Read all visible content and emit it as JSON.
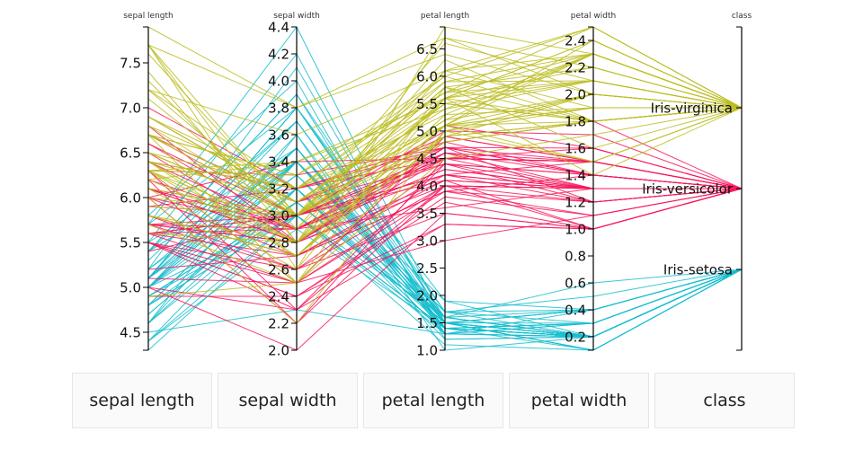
{
  "chart_data": {
    "type": "parallel-coordinates",
    "dimensions": [
      {
        "name": "sepal length",
        "domain": [
          4.3,
          7.9
        ],
        "ticks": [
          4.5,
          5.0,
          5.5,
          6.0,
          6.5,
          7.0,
          7.5
        ],
        "decimals": 1
      },
      {
        "name": "sepal width",
        "domain": [
          2.0,
          4.4
        ],
        "ticks": [
          2.0,
          2.2,
          2.4,
          2.6,
          2.8,
          3.0,
          3.2,
          3.4,
          3.6,
          3.8,
          4.0,
          4.2,
          4.4
        ],
        "decimals": 1
      },
      {
        "name": "petal length",
        "domain": [
          1.0,
          6.9
        ],
        "ticks": [
          1.0,
          1.5,
          2.0,
          2.5,
          3.0,
          3.5,
          4.0,
          4.5,
          5.0,
          5.5,
          6.0,
          6.5
        ],
        "decimals": 1
      },
      {
        "name": "petal width",
        "domain": [
          0.1,
          2.5
        ],
        "ticks": [
          0.2,
          0.4,
          0.6,
          0.8,
          1.0,
          1.2,
          1.4,
          1.6,
          1.8,
          2.0,
          2.2,
          2.4
        ],
        "decimals": 1
      },
      {
        "name": "class",
        "categories": [
          "Iris-setosa",
          "Iris-versicolor",
          "Iris-virginica"
        ]
      }
    ],
    "colors": {
      "Iris-setosa": "#17becf",
      "Iris-versicolor": "#f7175c",
      "Iris-virginica": "#bcbd22"
    },
    "rows": {
      "Iris-setosa": [
        [
          5.1,
          3.5,
          1.4,
          0.2
        ],
        [
          4.9,
          3.0,
          1.4,
          0.2
        ],
        [
          4.7,
          3.2,
          1.3,
          0.2
        ],
        [
          4.6,
          3.1,
          1.5,
          0.2
        ],
        [
          5.0,
          3.6,
          1.4,
          0.2
        ],
        [
          5.4,
          3.9,
          1.7,
          0.4
        ],
        [
          4.6,
          3.4,
          1.4,
          0.3
        ],
        [
          5.0,
          3.4,
          1.5,
          0.2
        ],
        [
          4.4,
          2.9,
          1.4,
          0.2
        ],
        [
          4.9,
          3.1,
          1.5,
          0.1
        ],
        [
          5.4,
          3.7,
          1.5,
          0.2
        ],
        [
          4.8,
          3.4,
          1.6,
          0.2
        ],
        [
          4.8,
          3.0,
          1.4,
          0.1
        ],
        [
          4.3,
          3.0,
          1.1,
          0.1
        ],
        [
          5.8,
          4.0,
          1.2,
          0.2
        ],
        [
          5.7,
          4.4,
          1.5,
          0.4
        ],
        [
          5.4,
          3.9,
          1.3,
          0.4
        ],
        [
          5.1,
          3.5,
          1.4,
          0.3
        ],
        [
          5.7,
          3.8,
          1.7,
          0.3
        ],
        [
          5.1,
          3.8,
          1.5,
          0.3
        ],
        [
          5.4,
          3.4,
          1.7,
          0.2
        ],
        [
          5.1,
          3.7,
          1.5,
          0.4
        ],
        [
          4.6,
          3.6,
          1.0,
          0.2
        ],
        [
          5.1,
          3.3,
          1.7,
          0.5
        ],
        [
          4.8,
          3.4,
          1.9,
          0.2
        ],
        [
          5.0,
          3.0,
          1.6,
          0.2
        ],
        [
          5.0,
          3.4,
          1.6,
          0.4
        ],
        [
          5.2,
          3.5,
          1.5,
          0.2
        ],
        [
          5.2,
          3.4,
          1.4,
          0.2
        ],
        [
          4.7,
          3.2,
          1.6,
          0.2
        ],
        [
          4.8,
          3.1,
          1.6,
          0.2
        ],
        [
          5.4,
          3.4,
          1.5,
          0.4
        ],
        [
          5.2,
          4.1,
          1.5,
          0.1
        ],
        [
          5.5,
          4.2,
          1.4,
          0.2
        ],
        [
          4.9,
          3.1,
          1.5,
          0.1
        ],
        [
          5.0,
          3.2,
          1.2,
          0.2
        ],
        [
          5.5,
          3.5,
          1.3,
          0.2
        ],
        [
          4.9,
          3.1,
          1.5,
          0.1
        ],
        [
          4.4,
          3.0,
          1.3,
          0.2
        ],
        [
          5.1,
          3.4,
          1.5,
          0.2
        ],
        [
          5.0,
          3.5,
          1.3,
          0.3
        ],
        [
          4.5,
          2.3,
          1.3,
          0.3
        ],
        [
          4.4,
          3.2,
          1.3,
          0.2
        ],
        [
          5.0,
          3.5,
          1.6,
          0.6
        ],
        [
          5.1,
          3.8,
          1.9,
          0.4
        ],
        [
          4.8,
          3.0,
          1.4,
          0.3
        ],
        [
          5.1,
          3.8,
          1.6,
          0.2
        ],
        [
          4.6,
          3.2,
          1.4,
          0.2
        ],
        [
          5.3,
          3.7,
          1.5,
          0.2
        ],
        [
          5.0,
          3.3,
          1.4,
          0.2
        ]
      ],
      "Iris-versicolor": [
        [
          7.0,
          3.2,
          4.7,
          1.4
        ],
        [
          6.4,
          3.2,
          4.5,
          1.5
        ],
        [
          6.9,
          3.1,
          4.9,
          1.5
        ],
        [
          5.5,
          2.3,
          4.0,
          1.3
        ],
        [
          6.5,
          2.8,
          4.6,
          1.5
        ],
        [
          5.7,
          2.8,
          4.5,
          1.3
        ],
        [
          6.3,
          3.3,
          4.7,
          1.6
        ],
        [
          4.9,
          2.4,
          3.3,
          1.0
        ],
        [
          6.6,
          2.9,
          4.6,
          1.3
        ],
        [
          5.2,
          2.7,
          3.9,
          1.4
        ],
        [
          5.0,
          2.0,
          3.5,
          1.0
        ],
        [
          5.9,
          3.0,
          4.2,
          1.5
        ],
        [
          6.0,
          2.2,
          4.0,
          1.0
        ],
        [
          6.1,
          2.9,
          4.7,
          1.4
        ],
        [
          5.6,
          2.9,
          3.6,
          1.3
        ],
        [
          6.7,
          3.1,
          4.4,
          1.4
        ],
        [
          5.6,
          3.0,
          4.5,
          1.5
        ],
        [
          5.8,
          2.7,
          4.1,
          1.0
        ],
        [
          6.2,
          2.2,
          4.5,
          1.5
        ],
        [
          5.6,
          2.5,
          3.9,
          1.1
        ],
        [
          5.9,
          3.2,
          4.8,
          1.8
        ],
        [
          6.1,
          2.8,
          4.0,
          1.3
        ],
        [
          6.3,
          2.5,
          4.9,
          1.5
        ],
        [
          6.1,
          2.8,
          4.7,
          1.2
        ],
        [
          6.4,
          2.9,
          4.3,
          1.3
        ],
        [
          6.6,
          3.0,
          4.4,
          1.4
        ],
        [
          6.8,
          2.8,
          4.8,
          1.4
        ],
        [
          6.7,
          3.0,
          5.0,
          1.7
        ],
        [
          6.0,
          2.9,
          4.5,
          1.5
        ],
        [
          5.7,
          2.6,
          3.5,
          1.0
        ],
        [
          5.5,
          2.4,
          3.8,
          1.1
        ],
        [
          5.5,
          2.4,
          3.7,
          1.0
        ],
        [
          5.8,
          2.7,
          3.9,
          1.2
        ],
        [
          6.0,
          2.7,
          5.1,
          1.6
        ],
        [
          5.4,
          3.0,
          4.5,
          1.5
        ],
        [
          6.0,
          3.4,
          4.5,
          1.6
        ],
        [
          6.7,
          3.1,
          4.7,
          1.5
        ],
        [
          6.3,
          2.3,
          4.4,
          1.3
        ],
        [
          5.6,
          3.0,
          4.1,
          1.3
        ],
        [
          5.5,
          2.5,
          4.0,
          1.3
        ],
        [
          5.5,
          2.6,
          4.4,
          1.2
        ],
        [
          6.1,
          3.0,
          4.6,
          1.4
        ],
        [
          5.8,
          2.6,
          4.0,
          1.2
        ],
        [
          5.0,
          2.3,
          3.3,
          1.0
        ],
        [
          5.6,
          2.7,
          4.2,
          1.3
        ],
        [
          5.7,
          3.0,
          4.2,
          1.2
        ],
        [
          5.7,
          2.9,
          4.2,
          1.3
        ],
        [
          6.2,
          2.9,
          4.3,
          1.3
        ],
        [
          5.1,
          2.5,
          3.0,
          1.1
        ],
        [
          5.7,
          2.8,
          4.1,
          1.3
        ]
      ],
      "Iris-virginica": [
        [
          6.3,
          3.3,
          6.0,
          2.5
        ],
        [
          5.8,
          2.7,
          5.1,
          1.9
        ],
        [
          7.1,
          3.0,
          5.9,
          2.1
        ],
        [
          6.3,
          2.9,
          5.6,
          1.8
        ],
        [
          6.5,
          3.0,
          5.8,
          2.2
        ],
        [
          7.6,
          3.0,
          6.6,
          2.1
        ],
        [
          4.9,
          2.5,
          4.5,
          1.7
        ],
        [
          7.3,
          2.9,
          6.3,
          1.8
        ],
        [
          6.7,
          2.5,
          5.8,
          1.8
        ],
        [
          7.2,
          3.6,
          6.1,
          2.5
        ],
        [
          6.5,
          3.2,
          5.1,
          2.0
        ],
        [
          6.4,
          2.7,
          5.3,
          1.9
        ],
        [
          6.8,
          3.0,
          5.5,
          2.1
        ],
        [
          5.7,
          2.5,
          5.0,
          2.0
        ],
        [
          5.8,
          2.8,
          5.1,
          2.4
        ],
        [
          6.4,
          3.2,
          5.3,
          2.3
        ],
        [
          6.5,
          3.0,
          5.5,
          1.8
        ],
        [
          7.7,
          3.8,
          6.7,
          2.2
        ],
        [
          7.7,
          2.6,
          6.9,
          2.3
        ],
        [
          6.0,
          2.2,
          5.0,
          1.5
        ],
        [
          6.9,
          3.2,
          5.7,
          2.3
        ],
        [
          5.6,
          2.8,
          4.9,
          2.0
        ],
        [
          7.7,
          2.8,
          6.7,
          2.0
        ],
        [
          6.3,
          2.7,
          4.9,
          1.8
        ],
        [
          6.7,
          3.3,
          5.7,
          2.1
        ],
        [
          7.2,
          3.2,
          6.0,
          1.8
        ],
        [
          6.2,
          2.8,
          4.8,
          1.8
        ],
        [
          6.1,
          3.0,
          4.9,
          1.8
        ],
        [
          6.4,
          2.8,
          5.6,
          2.1
        ],
        [
          7.2,
          3.0,
          5.8,
          1.6
        ],
        [
          7.4,
          2.8,
          6.1,
          1.9
        ],
        [
          7.9,
          3.8,
          6.4,
          2.0
        ],
        [
          6.4,
          2.8,
          5.6,
          2.2
        ],
        [
          6.3,
          2.8,
          5.1,
          1.5
        ],
        [
          6.1,
          2.6,
          5.6,
          1.4
        ],
        [
          7.7,
          3.0,
          6.1,
          2.3
        ],
        [
          6.3,
          3.4,
          5.6,
          2.4
        ],
        [
          6.4,
          3.1,
          5.5,
          1.8
        ],
        [
          6.0,
          3.0,
          4.8,
          1.8
        ],
        [
          6.9,
          3.1,
          5.4,
          2.1
        ],
        [
          6.7,
          3.1,
          5.6,
          2.4
        ],
        [
          6.9,
          3.1,
          5.1,
          2.3
        ],
        [
          5.8,
          2.7,
          5.1,
          1.9
        ],
        [
          6.8,
          3.2,
          5.9,
          2.3
        ],
        [
          6.7,
          3.3,
          5.7,
          2.5
        ],
        [
          6.7,
          3.0,
          5.2,
          2.3
        ],
        [
          6.3,
          2.5,
          5.0,
          1.9
        ],
        [
          6.5,
          3.0,
          5.2,
          2.0
        ],
        [
          6.2,
          3.4,
          5.4,
          2.3
        ],
        [
          5.9,
          3.0,
          5.1,
          1.8
        ]
      ]
    }
  },
  "buttons": [
    "sepal length",
    "sepal width",
    "petal length",
    "petal width",
    "class"
  ]
}
